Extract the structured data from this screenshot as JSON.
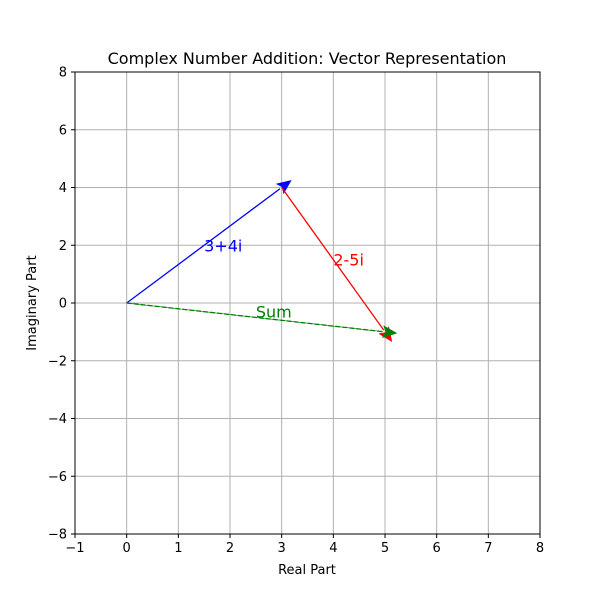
{
  "chart_data": {
    "type": "vector",
    "title": "Complex Number Addition: Vector Representation",
    "xlabel": "Real Part",
    "ylabel": "Imaginary Part",
    "xlim": [
      -1,
      8
    ],
    "ylim": [
      -8,
      8
    ],
    "xticks": [
      -1,
      0,
      1,
      2,
      3,
      4,
      5,
      6,
      7,
      8
    ],
    "yticks": [
      -8,
      -6,
      -4,
      -2,
      0,
      2,
      4,
      6,
      8
    ],
    "xtick_labels": [
      "−1",
      "0",
      "1",
      "2",
      "3",
      "4",
      "5",
      "6",
      "7",
      "8"
    ],
    "ytick_labels": [
      "−8",
      "−6",
      "−4",
      "−2",
      "0",
      "2",
      "4",
      "6",
      "8"
    ],
    "grid": true,
    "vectors": [
      {
        "label": "3+4i",
        "start": [
          0,
          0
        ],
        "end": [
          3,
          4
        ],
        "color": "#0000ff",
        "label_at": [
          1.5,
          2
        ]
      },
      {
        "label": "2-5i",
        "start": [
          3,
          4
        ],
        "end": [
          5,
          -1
        ],
        "color": "#ff0000",
        "label_at": [
          4,
          1.5
        ]
      },
      {
        "label": "Sum",
        "start": [
          0,
          0
        ],
        "end": [
          5,
          -1
        ],
        "color": "#008000",
        "label_at": [
          2.5,
          -0.3
        ],
        "dashed": true
      }
    ]
  }
}
